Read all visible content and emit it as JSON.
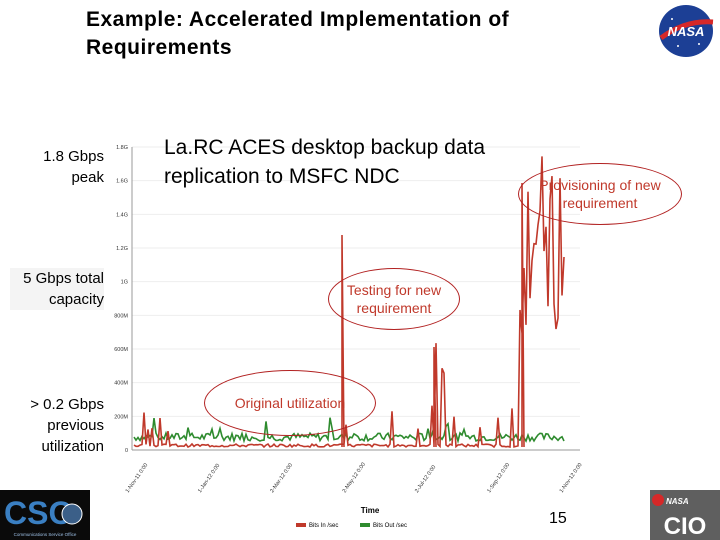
{
  "slide": {
    "title": "Example:  Accelerated Implementation of Requirements",
    "description": "La.RC ACES desktop backup data replication to MSFC NDC",
    "page_number": "15"
  },
  "side_labels": {
    "peak": "1.8 Gbps peak",
    "capacity": "5 Gbps total capacity",
    "previous": "> 0.2 Gbps previous utilization"
  },
  "callouts": {
    "provisioning": "Provisioning of new requirement",
    "testing": "Testing for new requirement",
    "original": "Original utilization"
  },
  "logos": {
    "nasa": "NASA",
    "cso": "CSO",
    "cso_sub": "Communications Service Office",
    "cio": "CIO",
    "cio_nasa": "NASA"
  },
  "chart_data": {
    "type": "line",
    "ylabels": [
      "1.8G",
      "1.6G",
      "1.4G",
      "1.2G",
      "1G",
      "800M",
      "600M",
      "400M",
      "200M",
      "0"
    ],
    "xlabels": [
      "1-Nov-11 0:00",
      "1-Jan-12 0:00",
      "2-Mar-12 0:00",
      "2-May-12 0:00",
      "2-Jul-12 0:00",
      "1-Sep-12 0:00",
      "1-Nov-12 0:00"
    ],
    "xlabel": "Time",
    "legend": [
      "Bits In /sec",
      "Bits Out /sec"
    ],
    "colors": {
      "in": "#c0392b",
      "out": "#2e8b2e"
    }
  }
}
